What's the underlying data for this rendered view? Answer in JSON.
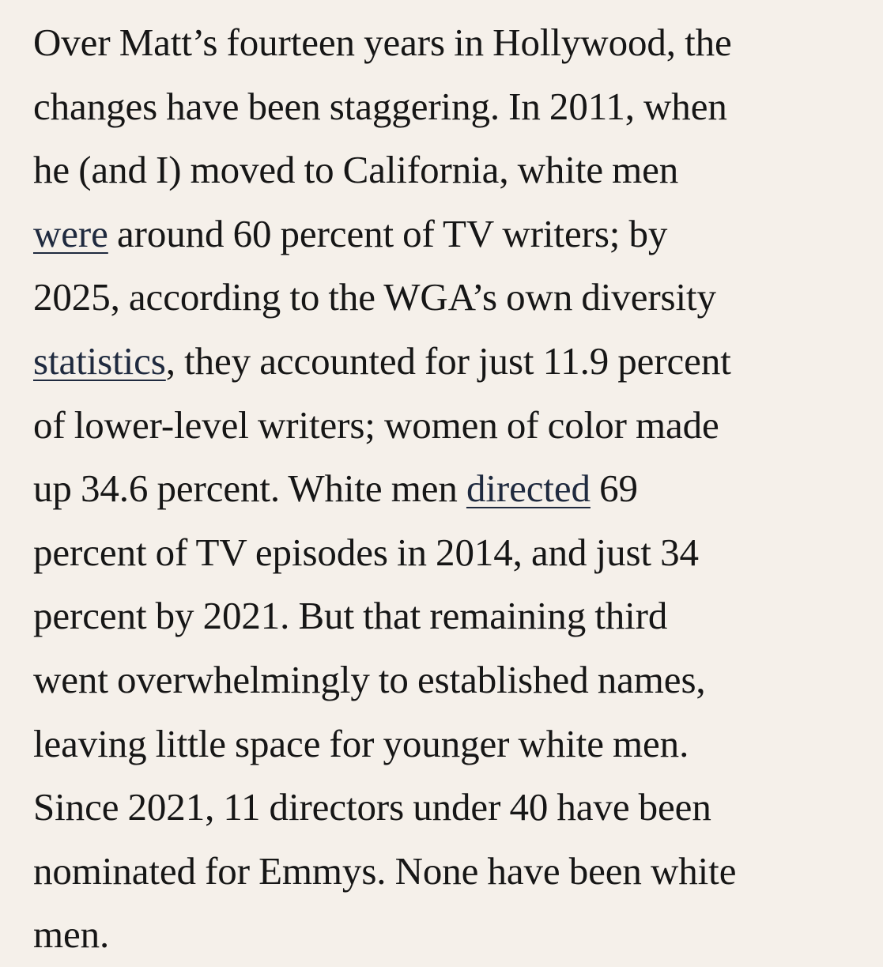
{
  "article": {
    "lines": [
      {
        "a": "Over Matt’s fourteen years in Hollywood, the"
      },
      {
        "a": "changes have been staggering. In 2011, when"
      },
      {
        "a": "he (and I) moved to California, white men"
      },
      {
        "link": "were",
        "b": " around 60 percent of TV writers; by"
      },
      {
        "a": "2025, according to the WGA’s own diversity"
      },
      {
        "link": "statistics",
        "b": ", they accounted for just 11.9 percent"
      },
      {
        "a": "of lower-level writers; women of color made"
      },
      {
        "a": "up 34.6 percent. White men ",
        "link": "directed",
        "b": " 69"
      },
      {
        "a": "percent of TV episodes in 2014, and just 34"
      },
      {
        "a": "percent by 2021. But that remaining third"
      },
      {
        "a": "went overwhelmingly to established names,"
      },
      {
        "a": "leaving little space for younger white men."
      },
      {
        "a": "Since 2021, 11 directors under 40 have been"
      },
      {
        "a": "nominated for Emmys. None have been white"
      },
      {
        "a": "men."
      }
    ]
  }
}
